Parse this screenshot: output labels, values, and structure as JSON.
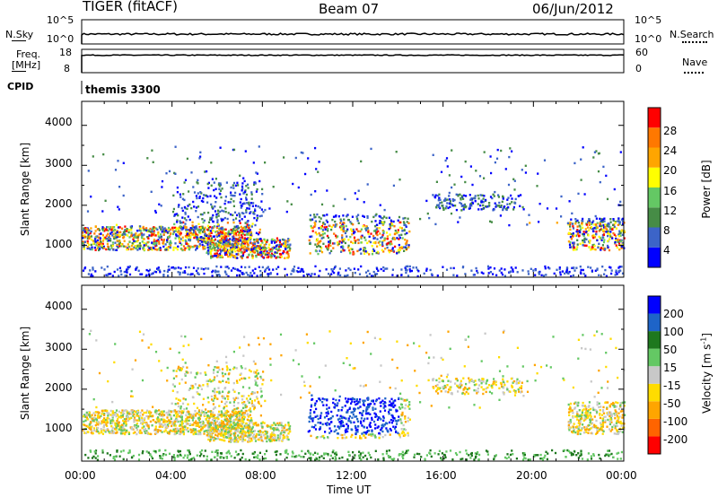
{
  "header": {
    "radar": "TIGER (fitACF)",
    "beam": "Beam 07",
    "date": "06/Jun/2012"
  },
  "strips": {
    "nsky_label": "N.Sky",
    "nsky_ticks": [
      "10^5",
      "10^0"
    ],
    "nsearch_label": "N.Search",
    "nsearch_ticks": [
      "10^5",
      "10^0"
    ],
    "freq_label_1": "Freq.",
    "freq_label_2": "[MHz]",
    "freq_ticks": [
      "18",
      "8"
    ],
    "nave_label": "Nave",
    "nave_ticks": [
      "60",
      "0"
    ],
    "cpid_label": "CPID",
    "cpid_value": "themis 3300"
  },
  "colors": {
    "power": [
      "#0000ff",
      "#3c64c8",
      "#468c46",
      "#64c864",
      "#ffff00",
      "#ffa500",
      "#ff7800",
      "#ff0000"
    ],
    "velocity": [
      "#ff0000",
      "#ff6400",
      "#ffa500",
      "#ffdc00",
      "#c8c8c8",
      "#64c864",
      "#1e781e",
      "#1e64c8",
      "#0000ff"
    ]
  },
  "chart_data": [
    {
      "type": "heatmap",
      "title": "",
      "xlabel": "",
      "ylabel": "Slant Range [km]",
      "xlim": [
        "00:00",
        "24:00"
      ],
      "ylim": [
        200,
        4600
      ],
      "x_ticks": [
        "00:00",
        "04:00",
        "08:00",
        "12:00",
        "16:00",
        "20:00",
        "00:00"
      ],
      "y_ticks": [
        "1000",
        "2000",
        "3000",
        "4000"
      ],
      "colorbar_label": "Power [dB]",
      "colorbar_ticks": [
        "28",
        "24",
        "20",
        "16",
        "12",
        "8",
        "4"
      ],
      "colorbar_range": [
        0,
        32
      ]
    },
    {
      "type": "heatmap",
      "title": "",
      "xlabel": "Time UT",
      "ylabel": "Slant Range [km]",
      "xlim": [
        "00:00",
        "24:00"
      ],
      "ylim": [
        200,
        4600
      ],
      "x_ticks": [
        "00:00",
        "04:00",
        "08:00",
        "12:00",
        "16:00",
        "20:00",
        "00:00"
      ],
      "y_ticks": [
        "1000",
        "2000",
        "3000",
        "4000"
      ],
      "colorbar_label": "Velocity [m s",
      "colorbar_label_sup": "-1",
      "colorbar_label_end": "]",
      "colorbar_ticks": [
        "200",
        "100",
        "50",
        "15",
        "-15",
        "-50",
        "-100",
        "-200"
      ]
    }
  ]
}
